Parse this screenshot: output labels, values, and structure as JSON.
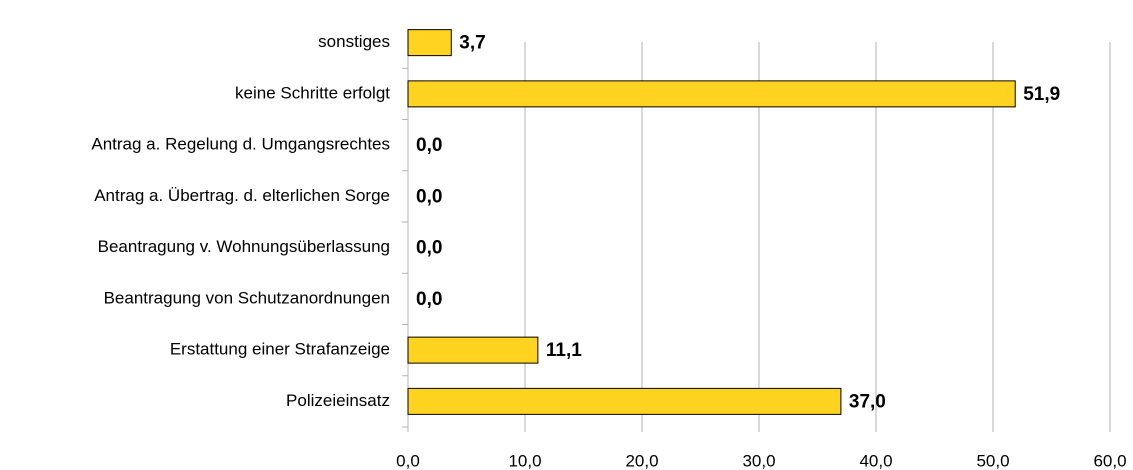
{
  "chart_data": {
    "type": "bar",
    "orientation": "horizontal",
    "categories": [
      "sonstiges",
      "keine Schritte erfolgt",
      "Antrag a. Regelung d. Umgangsrechtes",
      "Antrag a. Übertrag. d. elterlichen Sorge",
      "Beantragung v. Wohnungsüberlassung",
      "Beantragung von Schutzanordnungen",
      "Erstattung einer Strafanzeige",
      "Polizeieinsatz"
    ],
    "values": [
      3.7,
      51.9,
      0.0,
      0.0,
      0.0,
      0.0,
      11.1,
      37.0
    ],
    "value_labels": [
      "3,7",
      "51,9",
      "0,0",
      "0,0",
      "0,0",
      "0,0",
      "11,1",
      "37,0"
    ],
    "color": "#ffd320",
    "xlim": [
      0,
      60
    ],
    "xticks": [
      {
        "value": 0,
        "label": "0,0"
      },
      {
        "value": 10,
        "label": "10,0"
      },
      {
        "value": 20,
        "label": "20,0"
      },
      {
        "value": 30,
        "label": "30,0"
      },
      {
        "value": 40,
        "label": "40,0"
      },
      {
        "value": 50,
        "label": "50,0"
      },
      {
        "value": 60,
        "label": "60,0"
      }
    ],
    "grid": true
  }
}
